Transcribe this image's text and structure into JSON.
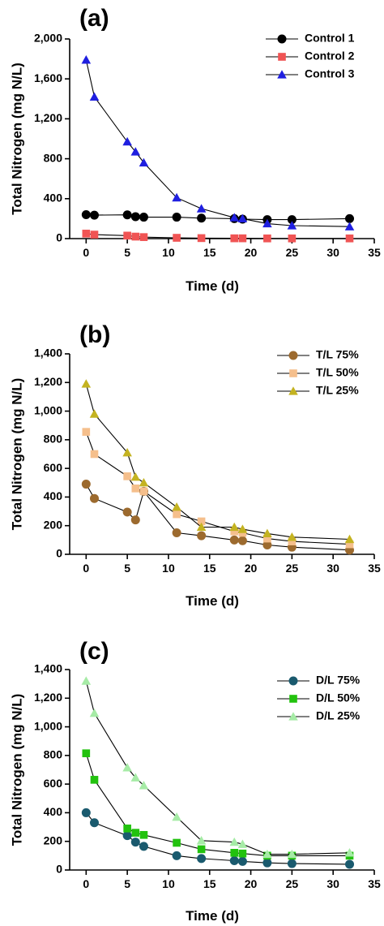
{
  "chart_data": [
    {
      "panel": "(a)",
      "type": "line",
      "xlabel": "Time (d)",
      "ylabel": "Total Nitrogen (mg N/L)",
      "xlim": [
        -2,
        35
      ],
      "ylim": [
        0,
        2000
      ],
      "x_ticks": [
        0,
        5,
        10,
        15,
        20,
        25,
        30,
        35
      ],
      "x_tick_labels": [
        "0",
        "5",
        "10",
        "15",
        "20",
        "25",
        "30",
        "35"
      ],
      "y_ticks": [
        0,
        400,
        800,
        1200,
        1600,
        2000
      ],
      "y_tick_labels": [
        "0",
        "400",
        "800",
        "1,200",
        "1,600",
        "2,000"
      ],
      "legend_position": "top-right",
      "series": [
        {
          "name": "Control 1",
          "color": "#000000",
          "marker": "circle",
          "x": [
            0,
            1,
            5,
            6,
            7,
            11,
            14,
            18,
            19,
            22,
            25,
            32
          ],
          "y": [
            240,
            235,
            238,
            220,
            215,
            215,
            205,
            200,
            195,
            190,
            190,
            200
          ]
        },
        {
          "name": "Control 2",
          "color": "#f05454",
          "marker": "square",
          "x": [
            0,
            1,
            5,
            6,
            7,
            11,
            14,
            18,
            19,
            22,
            25,
            32
          ],
          "y": [
            50,
            40,
            30,
            20,
            15,
            8,
            5,
            3,
            3,
            2,
            2,
            2
          ]
        },
        {
          "name": "Control 3",
          "color": "#1f1fe0",
          "marker": "triangle",
          "x": [
            0,
            1,
            5,
            6,
            7,
            11,
            14,
            18,
            19,
            22,
            25,
            32
          ],
          "y": [
            1790,
            1420,
            970,
            870,
            760,
            410,
            300,
            210,
            200,
            150,
            130,
            120
          ]
        }
      ]
    },
    {
      "panel": "(b)",
      "type": "line",
      "xlabel": "Time (d)",
      "ylabel": "Total Nitrogen (mg N/L)",
      "xlim": [
        -2,
        35
      ],
      "ylim": [
        0,
        1400
      ],
      "x_ticks": [
        0,
        5,
        10,
        15,
        20,
        25,
        30,
        35
      ],
      "x_tick_labels": [
        "0",
        "5",
        "10",
        "15",
        "20",
        "25",
        "30",
        "35"
      ],
      "y_ticks": [
        0,
        200,
        400,
        600,
        800,
        1000,
        1200,
        1400
      ],
      "y_tick_labels": [
        "0",
        "200",
        "400",
        "600",
        "800",
        "1,000",
        "1,200",
        "1,400"
      ],
      "legend_position": "top-right",
      "series": [
        {
          "name": "T/L 75%",
          "color": "#9c6a2e",
          "marker": "circle",
          "x": [
            0,
            1,
            5,
            6,
            7,
            11,
            14,
            18,
            19,
            22,
            25,
            32
          ],
          "y": [
            490,
            390,
            295,
            240,
            440,
            150,
            130,
            100,
            95,
            65,
            50,
            30
          ]
        },
        {
          "name": "T/L 50%",
          "color": "#f5bf8c",
          "marker": "square",
          "x": [
            0,
            1,
            5,
            6,
            7,
            11,
            14,
            18,
            19,
            22,
            25,
            32
          ],
          "y": [
            855,
            700,
            545,
            460,
            440,
            280,
            230,
            160,
            150,
            110,
            90,
            70
          ]
        },
        {
          "name": "T/L 25%",
          "color": "#c4b321",
          "marker": "triangle",
          "x": [
            0,
            1,
            5,
            6,
            7,
            11,
            14,
            18,
            19,
            22,
            25,
            32
          ],
          "y": [
            1190,
            980,
            710,
            540,
            500,
            330,
            190,
            190,
            175,
            145,
            120,
            105
          ]
        }
      ]
    },
    {
      "panel": "(c)",
      "type": "line",
      "xlabel": "Time (d)",
      "ylabel": "Total Nitrogen (mg N/L)",
      "xlim": [
        -2,
        35
      ],
      "ylim": [
        0,
        1400
      ],
      "x_ticks": [
        0,
        5,
        10,
        15,
        20,
        25,
        30,
        35
      ],
      "x_tick_labels": [
        "0",
        "5",
        "10",
        "15",
        "20",
        "25",
        "30",
        "35"
      ],
      "y_ticks": [
        0,
        200,
        400,
        600,
        800,
        1000,
        1200,
        1400
      ],
      "y_tick_labels": [
        "0",
        "200",
        "400",
        "600",
        "800",
        "1,000",
        "1,200",
        "1,400"
      ],
      "legend_position": "top-right",
      "series": [
        {
          "name": "D/L 75%",
          "color": "#1a5a6e",
          "marker": "circle",
          "x": [
            0,
            1,
            5,
            6,
            7,
            11,
            14,
            18,
            19,
            22,
            25,
            32
          ],
          "y": [
            400,
            330,
            240,
            195,
            165,
            100,
            80,
            65,
            60,
            50,
            45,
            40
          ]
        },
        {
          "name": "D/L 50%",
          "color": "#22c20e",
          "marker": "square",
          "x": [
            0,
            1,
            5,
            6,
            7,
            11,
            14,
            18,
            19,
            22,
            25,
            32
          ],
          "y": [
            815,
            630,
            290,
            260,
            245,
            190,
            145,
            120,
            115,
            100,
            100,
            100
          ]
        },
        {
          "name": "D/L 25%",
          "color": "#a6eba6",
          "marker": "triangle",
          "x": [
            0,
            1,
            5,
            6,
            7,
            11,
            14,
            18,
            19,
            22,
            25,
            32
          ],
          "y": [
            1320,
            1095,
            715,
            645,
            590,
            370,
            205,
            195,
            180,
            110,
            110,
            120
          ]
        }
      ]
    }
  ]
}
